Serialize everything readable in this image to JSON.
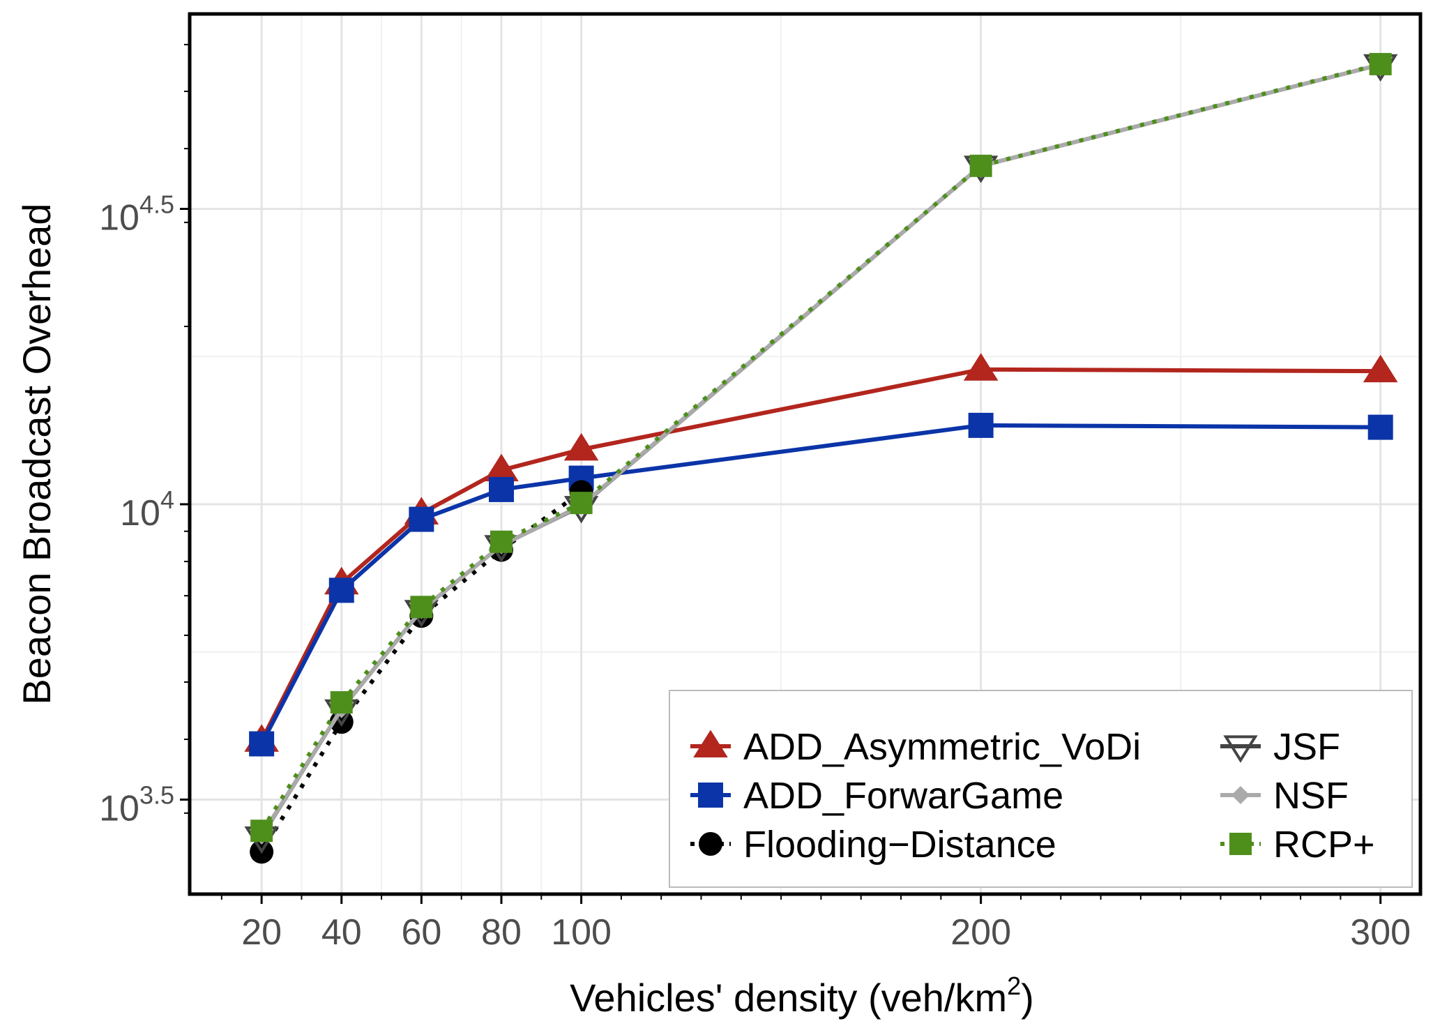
{
  "chart_data": {
    "type": "line",
    "title": "",
    "xlabel": "Vehicles' density (veh/km",
    "xlabel_sup": "2",
    "xlabel_tail": ")",
    "ylabel": "Beacon Broadcast Overhead",
    "x": [
      20,
      40,
      60,
      80,
      100,
      200,
      300
    ],
    "xlim": [
      2,
      310
    ],
    "xticks": [
      {
        "value": 20,
        "label": "20"
      },
      {
        "value": 40,
        "label": "40"
      },
      {
        "value": 60,
        "label": "60"
      },
      {
        "value": 80,
        "label": "80"
      },
      {
        "value": 100,
        "label": "100"
      },
      {
        "value": 200,
        "label": "200"
      },
      {
        "value": 300,
        "label": "300"
      }
    ],
    "yscale": "log10",
    "ylim_log10": [
      3.34,
      4.83
    ],
    "yticks": [
      {
        "value_log10": 3.5,
        "base": "10",
        "exp": "3.5"
      },
      {
        "value_log10": 4.0,
        "base": "10",
        "exp": "4"
      },
      {
        "value_log10": 4.5,
        "base": "10",
        "exp": "4.5"
      }
    ],
    "grid": true,
    "legend_position": "bottom-right",
    "series": [
      {
        "name": "ADD_Asymmetric_VoDi",
        "marker": "triangle-up",
        "line": "solid",
        "color": "#b2261e",
        "values": [
          3980,
          7350,
          9650,
          11420,
          12380,
          16910,
          16800
        ]
      },
      {
        "name": "ADD_ForwarGame",
        "marker": "square",
        "line": "solid",
        "color": "#0b34a8",
        "values": [
          3930,
          7150,
          9430,
          10590,
          11070,
          13600,
          13500
        ]
      },
      {
        "name": "Flooding−Distance",
        "marker": "circle",
        "line": "dotted",
        "color": "#000000",
        "values": [
          2580,
          4280,
          6470,
          8370,
          10490,
          null,
          null
        ]
      },
      {
        "name": "JSF",
        "marker": "triangle-down",
        "line": "solid",
        "color": "#444444",
        "values": [
          2730,
          4480,
          6600,
          8500,
          9900,
          37300,
          55400
        ]
      },
      {
        "name": "NSF",
        "marker": "diamond",
        "line": "solid",
        "color": "#aaaaaa",
        "values": [
          2750,
          4500,
          6620,
          8520,
          9950,
          37400,
          55500
        ]
      },
      {
        "name": "RCP+",
        "marker": "square",
        "line": "dotted",
        "color": "#4e8f1c",
        "values": [
          2800,
          4620,
          6700,
          8640,
          10050,
          37400,
          55600
        ]
      }
    ]
  }
}
